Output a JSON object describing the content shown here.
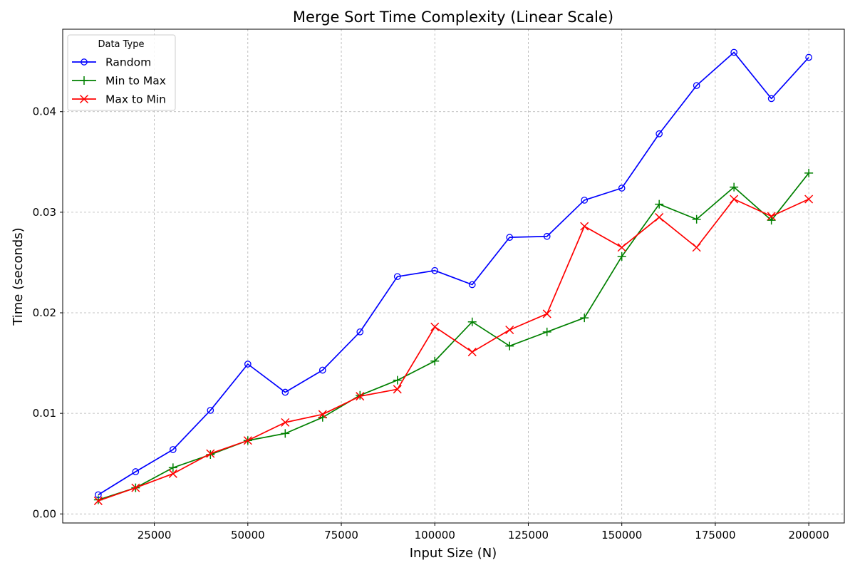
{
  "chart_data": {
    "type": "line",
    "title": "Merge Sort Time Complexity (Linear Scale)",
    "xlabel": "Input Size (N)",
    "ylabel": "Time (seconds)",
    "xlim": [
      500,
      209500
    ],
    "ylim": [
      -0.0009,
      0.0482
    ],
    "xticks": [
      25000,
      50000,
      75000,
      100000,
      125000,
      150000,
      175000,
      200000
    ],
    "yticks": [
      0.0,
      0.01,
      0.02,
      0.03,
      0.04
    ],
    "xtick_labels": [
      "25000",
      "50000",
      "75000",
      "100000",
      "125000",
      "150000",
      "175000",
      "200000"
    ],
    "ytick_labels": [
      "0.00",
      "0.01",
      "0.02",
      "0.03",
      "0.04"
    ],
    "grid": true,
    "legend": {
      "title": "Data Type",
      "position": "top-left"
    },
    "x": [
      10000,
      20000,
      30000,
      40000,
      50000,
      60000,
      70000,
      80000,
      90000,
      100000,
      110000,
      120000,
      130000,
      140000,
      150000,
      160000,
      170000,
      180000,
      190000,
      200000
    ],
    "series": [
      {
        "name": "Random",
        "color": "#0000ff",
        "marker": "circle",
        "values": [
          0.0019,
          0.0042,
          0.0064,
          0.0103,
          0.0149,
          0.0121,
          0.0143,
          0.0181,
          0.0236,
          0.0242,
          0.0228,
          0.0275,
          0.0276,
          0.0312,
          0.0324,
          0.0378,
          0.0426,
          0.0459,
          0.0413,
          0.0454
        ]
      },
      {
        "name": "Min to Max",
        "color": "#008000",
        "marker": "plus",
        "values": [
          0.0014,
          0.0026,
          0.0046,
          0.0059,
          0.0073,
          0.008,
          0.0096,
          0.0118,
          0.0133,
          0.0152,
          0.0191,
          0.0167,
          0.0181,
          0.0195,
          0.0256,
          0.0308,
          0.0293,
          0.0325,
          0.0292,
          0.0339
        ]
      },
      {
        "name": "Max to Min",
        "color": "#ff0000",
        "marker": "x",
        "values": [
          0.0013,
          0.0026,
          0.004,
          0.006,
          0.0073,
          0.0091,
          0.0099,
          0.0117,
          0.0124,
          0.0186,
          0.0161,
          0.0183,
          0.0199,
          0.0286,
          0.0265,
          0.0295,
          0.0265,
          0.0313,
          0.0296,
          0.0313
        ]
      }
    ]
  }
}
